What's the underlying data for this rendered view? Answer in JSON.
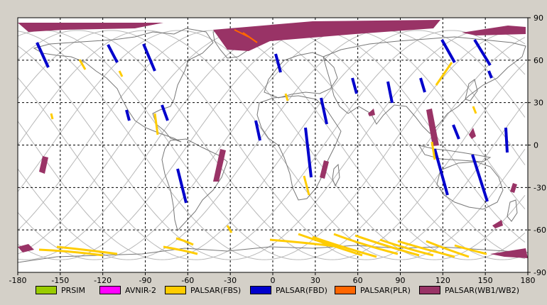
{
  "map": {
    "x_ticks": [
      "-180",
      "-150",
      "-120",
      "-90",
      "-60",
      "-30",
      "0",
      "30",
      "60",
      "90",
      "120",
      "150",
      "180"
    ],
    "y_ticks": [
      "90",
      "60",
      "30",
      "0",
      "-30",
      "-60",
      "-90"
    ],
    "x_range": [
      -180,
      180
    ],
    "y_range": [
      -90,
      90
    ],
    "grid": "dashed",
    "colors": {
      "background": "#d4d0c8",
      "map_fill": "#ffffff",
      "coastline": "#707070",
      "ground_track": "#b0b0b0",
      "grid": "#000000"
    }
  },
  "legend": [
    {
      "label": "PRSIM",
      "color": "#99cc00"
    },
    {
      "label": "AVNIR-2",
      "color": "#ff00ff"
    },
    {
      "label": "PALSAR(FBS)",
      "color": "#ffcc00"
    },
    {
      "label": "PALSAR(FBD)",
      "color": "#0000cc"
    },
    {
      "label": "PALSAR(PLR)",
      "color": "#ff6600"
    },
    {
      "label": "PALSAR(WB1/WB2)",
      "color": "#993366"
    }
  ]
}
